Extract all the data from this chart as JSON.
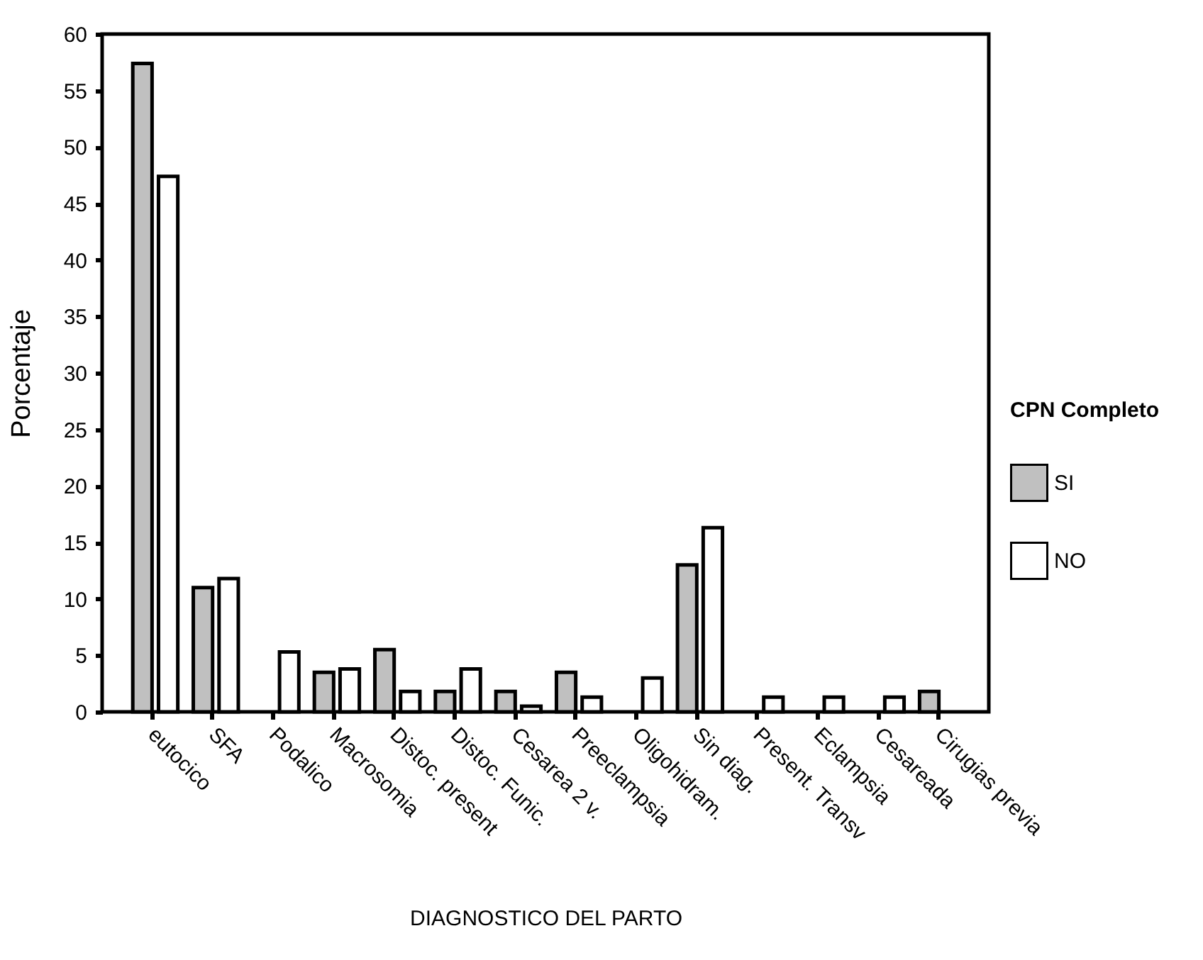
{
  "chart_data": {
    "type": "bar",
    "xlabel": "DIAGNOSTICO DEL PARTO",
    "ylabel": "Porcentaje",
    "legend_title": "CPN Completo",
    "categories": [
      "eutocico",
      "SFA",
      "Podalico",
      "Macrosomia",
      "Distoc. present",
      "Distoc. Funic.",
      "Cesarea 2 v.",
      "Preeclampsia",
      "Oligohidram.",
      "Sin diag.",
      "Present. Transv",
      "Eclampsia",
      "Cesareada",
      "Cirugias previa"
    ],
    "series": [
      {
        "name": "SI",
        "color": "#c0c0c0",
        "values": [
          57.4,
          11.0,
          null,
          3.5,
          5.5,
          1.8,
          1.8,
          3.5,
          null,
          13.0,
          null,
          null,
          null,
          1.8
        ]
      },
      {
        "name": "NO",
        "color": "#ffffff",
        "values": [
          47.4,
          11.8,
          5.3,
          3.8,
          1.8,
          3.8,
          0.5,
          1.3,
          3.0,
          16.3,
          1.3,
          1.3,
          1.3,
          null
        ]
      }
    ],
    "ylim": [
      0,
      60
    ],
    "yticks": [
      0,
      5,
      10,
      15,
      20,
      25,
      30,
      35,
      40,
      45,
      50,
      55,
      60
    ],
    "grid": false,
    "legend": "right"
  }
}
